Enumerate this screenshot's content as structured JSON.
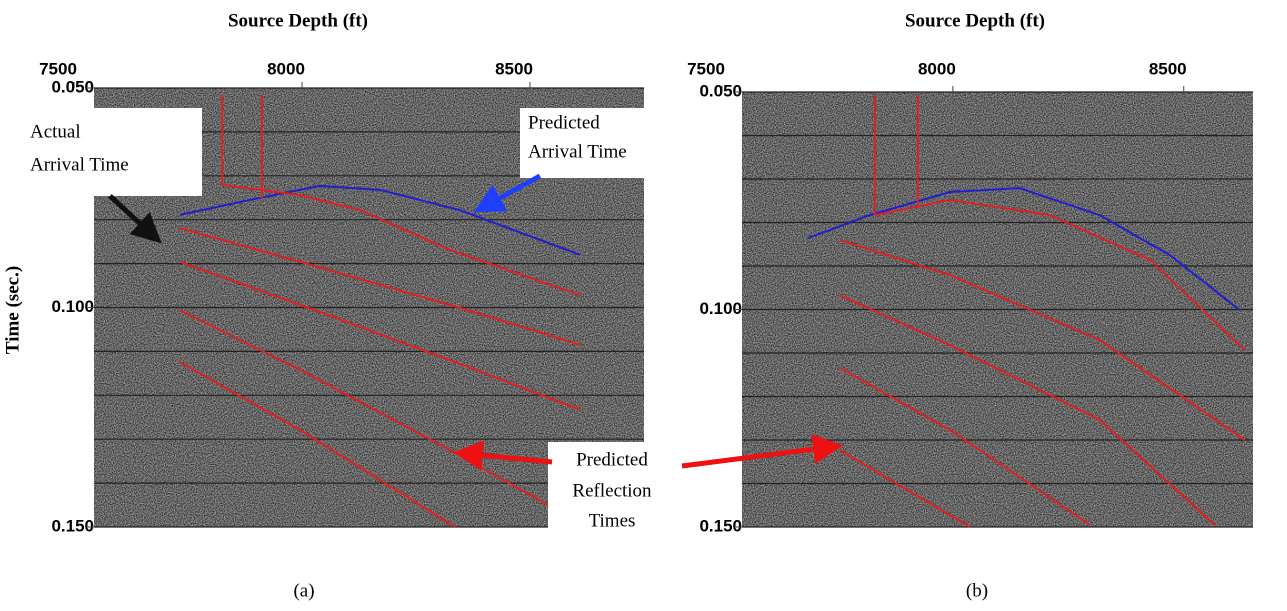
{
  "chart_data": [
    {
      "type": "line",
      "title": "Source Depth (ft)",
      "y_label": "Time (sec.)",
      "label": "(a)",
      "xlim": [
        7500,
        8750
      ],
      "xticks": [
        7500,
        8000,
        8500
      ],
      "ylim": [
        0.05,
        0.15
      ],
      "yticks": [
        {
          "value": 0.05,
          "label": "0.050"
        },
        {
          "value": 0.1,
          "label": "0.100"
        },
        {
          "value": 0.15,
          "label": "0.150"
        }
      ],
      "ygrid": [
        0.05,
        0.06,
        0.07,
        0.08,
        0.09,
        0.1,
        0.11,
        0.12,
        0.13,
        0.14,
        0.15
      ],
      "series": [
        {
          "color": "#1f1fd0",
          "x": [
            7732,
            7886,
            8039,
            8171,
            8346,
            8610
          ],
          "values": [
            0.0789,
            0.0755,
            0.0723,
            0.0732,
            0.0778,
            0.088
          ]
        },
        {
          "color": "#e02020",
          "x": [
            7825,
            7825
          ],
          "values": [
            0.0516,
            0.0721
          ]
        },
        {
          "color": "#e02020",
          "x": [
            7912,
            7912
          ],
          "values": [
            0.0516,
            0.0751
          ]
        },
        {
          "color": "#e02020",
          "x": [
            7825,
            7996,
            8127,
            8325,
            8610
          ],
          "values": [
            0.0721,
            0.0744,
            0.0778,
            0.0869,
            0.0972
          ]
        },
        {
          "color": "#e02020",
          "x": [
            7732,
            7996,
            8325,
            8610
          ],
          "values": [
            0.0819,
            0.0896,
            0.0994,
            0.1085
          ]
        },
        {
          "color": "#e02020",
          "x": [
            7732,
            7996,
            8325,
            8610
          ],
          "values": [
            0.0896,
            0.0994,
            0.112,
            0.1233
          ]
        },
        {
          "color": "#e02020",
          "x": [
            7732,
            7996,
            8325,
            8599
          ],
          "values": [
            0.1006,
            0.1142,
            0.1325,
            0.1484
          ]
        },
        {
          "color": "#e02020",
          "x": [
            7732,
            7996,
            8336
          ],
          "values": [
            0.1124,
            0.1279,
            0.15
          ]
        }
      ],
      "annotations": [
        [
          "Actual",
          "Arrival Time"
        ],
        [
          "Predicted",
          "Arrival Time"
        ],
        [
          "Predicted",
          "Reflection",
          "Times"
        ]
      ]
    },
    {
      "type": "line",
      "title": "Source Depth (ft)",
      "label": "(b)",
      "xlim": [
        7500,
        8650
      ],
      "xticks": [
        7500,
        8000,
        8500
      ],
      "ylim": [
        0.05,
        0.15
      ],
      "yticks": [
        {
          "value": 0.05,
          "label": "0.050"
        },
        {
          "value": 0.1,
          "label": "0.100"
        },
        {
          "value": 0.15,
          "label": "0.150"
        }
      ],
      "ygrid": [
        0.05,
        0.06,
        0.07,
        0.08,
        0.09,
        0.1,
        0.11,
        0.12,
        0.13,
        0.14,
        0.15
      ],
      "series": [
        {
          "color": "#1f1fd0",
          "x": [
            7686,
            7820,
            7994,
            8145,
            8318,
            8470,
            8621
          ],
          "values": [
            0.0836,
            0.0783,
            0.073,
            0.0721,
            0.0783,
            0.0875,
            0.1001
          ]
        },
        {
          "color": "#e02020",
          "x": [
            7831,
            7831
          ],
          "values": [
            0.0507,
            0.0783
          ]
        },
        {
          "color": "#e02020",
          "x": [
            7924,
            7924
          ],
          "values": [
            0.0507,
            0.076
          ]
        },
        {
          "color": "#e02020",
          "x": [
            7831,
            7994,
            8210,
            8427,
            8632
          ],
          "values": [
            0.0783,
            0.0748,
            0.0783,
            0.0886,
            0.1093
          ]
        },
        {
          "color": "#e02020",
          "x": [
            7755,
            7994,
            8318,
            8632
          ],
          "values": [
            0.084,
            0.0921,
            0.107,
            0.13
          ]
        },
        {
          "color": "#e02020",
          "x": [
            7755,
            7994,
            8318,
            8567
          ],
          "values": [
            0.0967,
            0.1082,
            0.1254,
            0.1495
          ]
        },
        {
          "color": "#e02020",
          "x": [
            7755,
            7994,
            8297
          ],
          "values": [
            0.1134,
            0.1277,
            0.1495
          ]
        },
        {
          "color": "#e02020",
          "x": [
            7755,
            8037
          ],
          "values": [
            0.1323,
            0.15
          ]
        }
      ]
    }
  ]
}
